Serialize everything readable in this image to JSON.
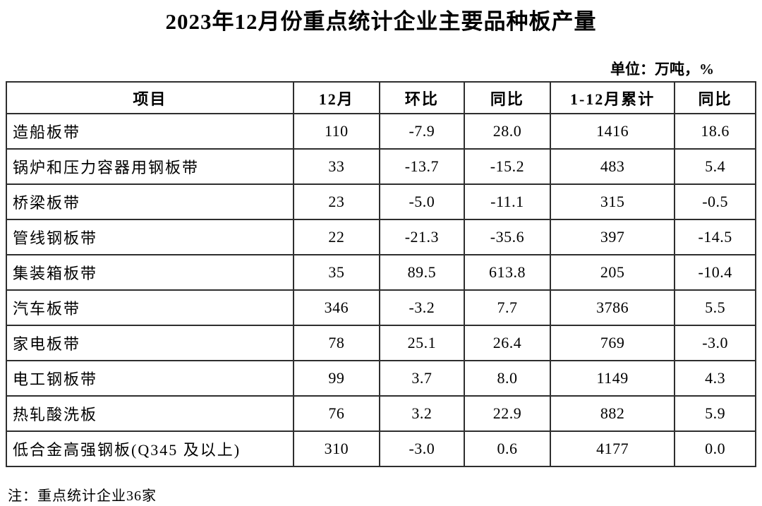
{
  "title": "2023年12月份重点统计企业主要品种板产量",
  "unit_note": "单位：万吨，%",
  "footnote": "注：重点统计企业36家",
  "colors": {
    "text": "#000000",
    "border": "#2e2e2e",
    "background": "#ffffff"
  },
  "table": {
    "headers": [
      "项目",
      "12月",
      "环比",
      "同比",
      "1-12月累计",
      "同比"
    ],
    "rows": [
      [
        "造船板带",
        "110",
        "-7.9",
        "28.0",
        "1416",
        "18.6"
      ],
      [
        "锅炉和压力容器用钢板带",
        "33",
        "-13.7",
        "-15.2",
        "483",
        "5.4"
      ],
      [
        "桥梁板带",
        "23",
        "-5.0",
        "-11.1",
        "315",
        "-0.5"
      ],
      [
        "管线钢板带",
        "22",
        "-21.3",
        "-35.6",
        "397",
        "-14.5"
      ],
      [
        "集装箱板带",
        "35",
        "89.5",
        "613.8",
        "205",
        "-10.4"
      ],
      [
        "汽车板带",
        "346",
        "-3.2",
        "7.7",
        "3786",
        "5.5"
      ],
      [
        "家电板带",
        "78",
        "25.1",
        "26.4",
        "769",
        "-3.0"
      ],
      [
        "电工钢板带",
        "99",
        "3.7",
        "8.0",
        "1149",
        "4.3"
      ],
      [
        "热轧酸洗板",
        "76",
        "3.2",
        "22.9",
        "882",
        "5.9"
      ],
      [
        "低合金高强钢板(Q345 及以上)",
        "310",
        "-3.0",
        "0.6",
        "4177",
        "0.0"
      ]
    ]
  }
}
